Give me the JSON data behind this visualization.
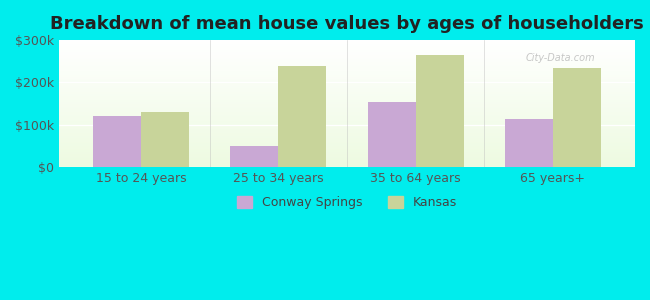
{
  "title": "Breakdown of mean house values by ages of householders",
  "categories": [
    "15 to 24 years",
    "25 to 34 years",
    "35 to 64 years",
    "65 years+"
  ],
  "conway_springs": [
    120000,
    50000,
    155000,
    115000
  ],
  "kansas": [
    130000,
    240000,
    265000,
    235000
  ],
  "conway_color": "#c9a8d4",
  "kansas_color": "#c8d49a",
  "background_color": "#00eded",
  "ylim": [
    0,
    300000
  ],
  "yticks": [
    0,
    100000,
    200000,
    300000
  ],
  "ytick_labels": [
    "$0",
    "$100k",
    "$200k",
    "$300k"
  ],
  "legend_labels": [
    "Conway Springs",
    "Kansas"
  ],
  "bar_width": 0.35,
  "title_fontsize": 13,
  "tick_fontsize": 9,
  "legend_fontsize": 9,
  "watermark": "City-Data.com"
}
